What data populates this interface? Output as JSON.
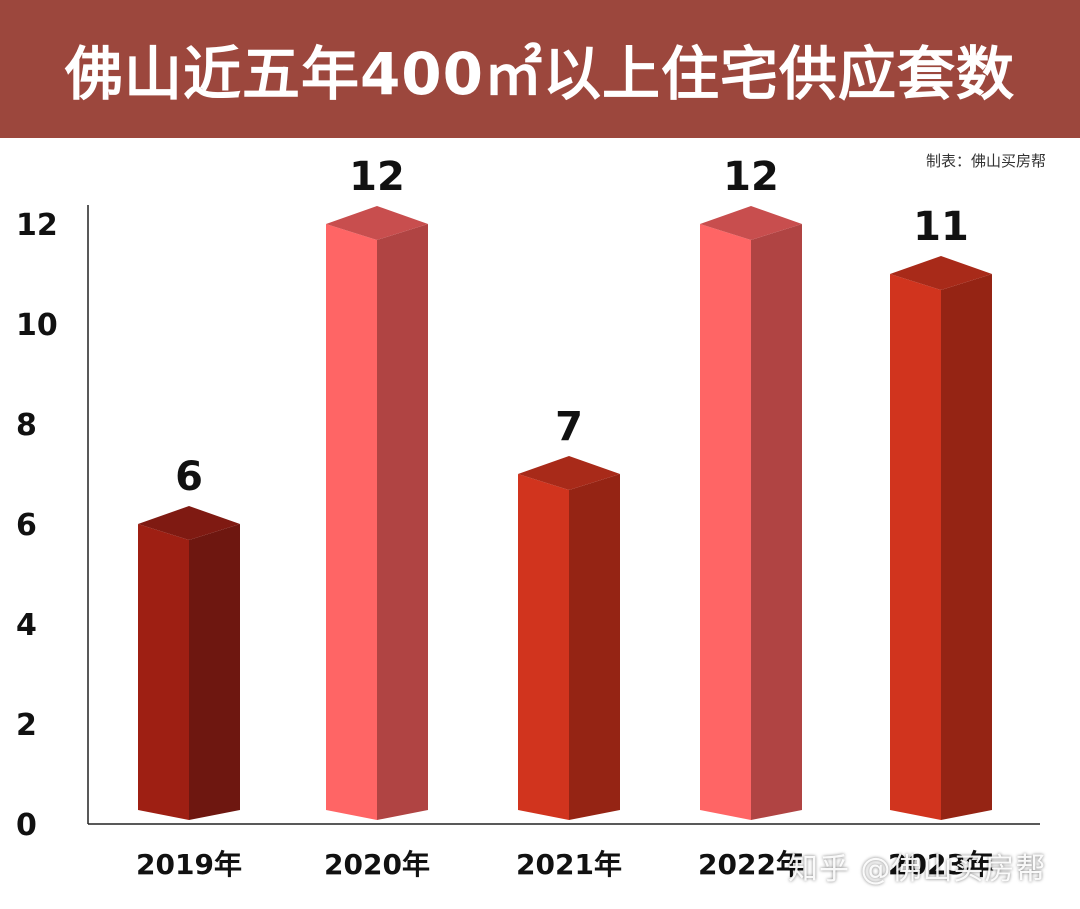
{
  "title": "佛山近五年400㎡以上住宅供应套数",
  "credit": "制表：佛山买房帮",
  "watermark": "知乎 @佛山买房帮",
  "colors": {
    "banner": "#9c473d",
    "bar_dark_front": "#9e1f13",
    "bar_dark_side": "#6e1710",
    "bar_dark_top": "#7f1a12",
    "bar_pink_front": "#ff6565",
    "bar_pink_side": "#b04443",
    "bar_pink_top": "#c84e4e",
    "bar_red_front": "#d1341e",
    "bar_red_side": "#952414",
    "bar_red_top": "#a82a19"
  },
  "chart_data": {
    "type": "bar",
    "title": "佛山近五年400㎡以上住宅供应套数",
    "categories": [
      "2019年",
      "2020年",
      "2021年",
      "2022年",
      "2023年"
    ],
    "values": [
      6,
      12,
      7,
      12,
      11
    ],
    "data_labels": [
      "6",
      "12",
      "7",
      "12",
      "11"
    ],
    "bar_styles": [
      "dark",
      "pink",
      "red",
      "pink",
      "red"
    ],
    "yticks": [
      "0",
      "2",
      "4",
      "6",
      "8",
      "10",
      "12"
    ],
    "ylim": [
      0,
      12
    ],
    "grid": false,
    "legend": "none",
    "xlabel": "",
    "ylabel": ""
  }
}
